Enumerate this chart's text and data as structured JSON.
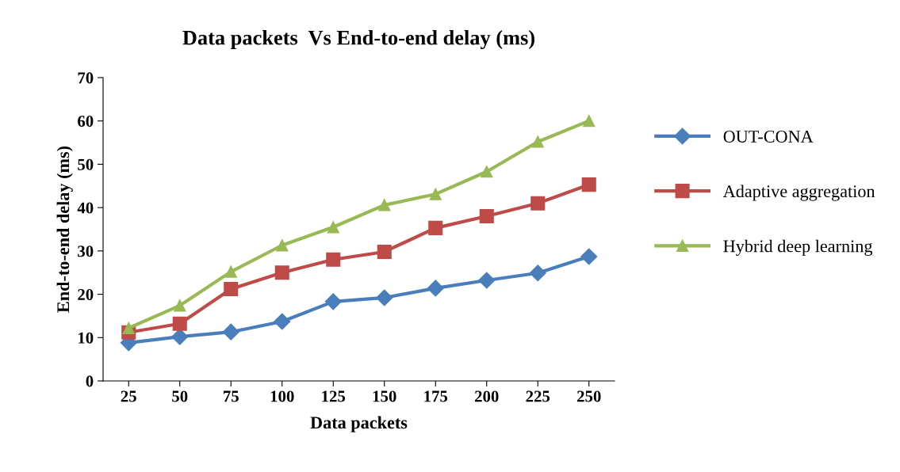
{
  "chart_data": {
    "type": "line",
    "title": "Data packets  Vs End-to-end delay (ms)",
    "xlabel": "Data packets",
    "ylabel": "End-to-end delay (ms)",
    "categories": [
      "25",
      "50",
      "75",
      "100",
      "125",
      "150",
      "175",
      "200",
      "225",
      "250"
    ],
    "series": [
      {
        "name": "OUT-CONA",
        "color": "#4a7ebb",
        "marker": "diamond",
        "values": [
          8.8,
          10.2,
          11.3,
          13.7,
          18.3,
          19.2,
          21.4,
          23.2,
          24.9,
          28.7
        ]
      },
      {
        "name": "Adaptive aggregation",
        "color": "#be4b48",
        "marker": "square",
        "values": [
          11.2,
          13.2,
          21.2,
          25.0,
          28.0,
          29.8,
          35.3,
          38.0,
          41.0,
          45.3
        ]
      },
      {
        "name": "Hybrid deep learning",
        "color": "#98b954",
        "marker": "triangle",
        "values": [
          12.2,
          17.4,
          25.2,
          31.3,
          35.5,
          40.6,
          43.1,
          48.3,
          55.2,
          60.0
        ]
      }
    ],
    "ylim": [
      0,
      70
    ],
    "yticks": [
      0,
      10,
      20,
      30,
      40,
      50,
      60,
      70
    ],
    "grid": false,
    "legend": "right",
    "line_style": "solid"
  }
}
